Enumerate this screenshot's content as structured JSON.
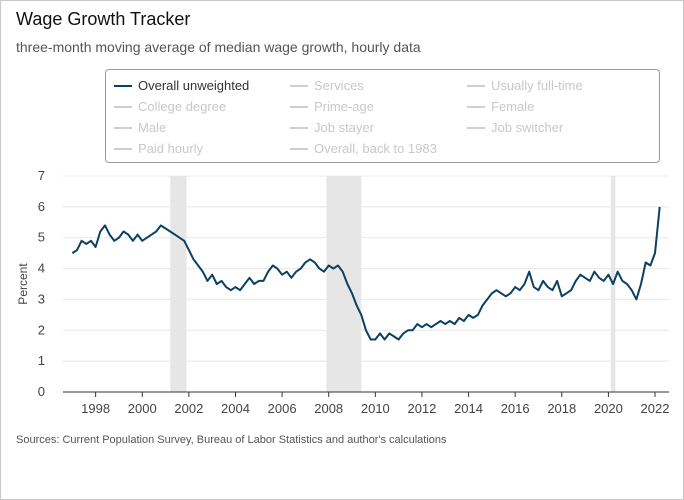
{
  "title": "Wage Growth Tracker",
  "subtitle": "three-month moving average of median wage growth, hourly data",
  "source": "Sources: Current Population Survey, Bureau of Labor Statistics and author's calculations",
  "legend": {
    "items": [
      {
        "label": "Overall unweighted",
        "active": true
      },
      {
        "label": "Services",
        "active": false
      },
      {
        "label": "Usually full-time",
        "active": false
      },
      {
        "label": "College degree",
        "active": false
      },
      {
        "label": "Prime-age",
        "active": false
      },
      {
        "label": "Female",
        "active": false
      },
      {
        "label": "Male",
        "active": false
      },
      {
        "label": "Job stayer",
        "active": false
      },
      {
        "label": "Job switcher",
        "active": false
      },
      {
        "label": "Paid hourly",
        "active": false
      },
      {
        "label": "Overall, back to 1983",
        "active": false
      }
    ]
  },
  "colors": {
    "series": "#0d3f63",
    "recession": "#e6e6e6",
    "inactive": "#cfcfcf",
    "grid": "#e8e8e8"
  },
  "chart_data": {
    "type": "line",
    "title": "Wage Growth Tracker",
    "subtitle": "three-month moving average of median wage growth, hourly data",
    "xlabel": "",
    "ylabel": "Percent",
    "xlim": [
      1996.6,
      2022.6
    ],
    "ylim": [
      0,
      7
    ],
    "yticks": [
      0,
      1,
      2,
      3,
      4,
      5,
      6,
      7
    ],
    "xticks": [
      1998,
      2000,
      2002,
      2004,
      2006,
      2008,
      2010,
      2012,
      2014,
      2016,
      2018,
      2020,
      2022
    ],
    "grid": true,
    "legend_position": "top",
    "recessions": [
      [
        2001.2,
        2001.9
      ],
      [
        2007.9,
        2009.4
      ],
      [
        2020.1,
        2020.3
      ]
    ],
    "series": [
      {
        "name": "Overall unweighted",
        "x": [
          1997.0,
          1997.2,
          1997.4,
          1997.6,
          1997.8,
          1998.0,
          1998.2,
          1998.4,
          1998.6,
          1998.8,
          1999.0,
          1999.2,
          1999.4,
          1999.6,
          1999.8,
          2000.0,
          2000.2,
          2000.4,
          2000.6,
          2000.8,
          2001.0,
          2001.2,
          2001.4,
          2001.6,
          2001.8,
          2002.0,
          2002.2,
          2002.4,
          2002.6,
          2002.8,
          2003.0,
          2003.2,
          2003.4,
          2003.6,
          2003.8,
          2004.0,
          2004.2,
          2004.4,
          2004.6,
          2004.8,
          2005.0,
          2005.2,
          2005.4,
          2005.6,
          2005.8,
          2006.0,
          2006.2,
          2006.4,
          2006.6,
          2006.8,
          2007.0,
          2007.2,
          2007.4,
          2007.6,
          2007.8,
          2008.0,
          2008.2,
          2008.4,
          2008.6,
          2008.8,
          2009.0,
          2009.2,
          2009.4,
          2009.6,
          2009.8,
          2010.0,
          2010.2,
          2010.4,
          2010.6,
          2010.8,
          2011.0,
          2011.2,
          2011.4,
          2011.6,
          2011.8,
          2012.0,
          2012.2,
          2012.4,
          2012.6,
          2012.8,
          2013.0,
          2013.2,
          2013.4,
          2013.6,
          2013.8,
          2014.0,
          2014.2,
          2014.4,
          2014.6,
          2014.8,
          2015.0,
          2015.2,
          2015.4,
          2015.6,
          2015.8,
          2016.0,
          2016.2,
          2016.4,
          2016.6,
          2016.8,
          2017.0,
          2017.2,
          2017.4,
          2017.6,
          2017.8,
          2018.0,
          2018.2,
          2018.4,
          2018.6,
          2018.8,
          2019.0,
          2019.2,
          2019.4,
          2019.6,
          2019.8,
          2020.0,
          2020.2,
          2020.4,
          2020.6,
          2020.8,
          2021.0,
          2021.2,
          2021.4,
          2021.6,
          2021.8,
          2022.0,
          2022.2
        ],
        "values": [
          4.5,
          4.6,
          4.9,
          4.8,
          4.9,
          4.7,
          5.2,
          5.4,
          5.1,
          4.9,
          5.0,
          5.2,
          5.1,
          4.9,
          5.1,
          4.9,
          5.0,
          5.1,
          5.2,
          5.4,
          5.3,
          5.2,
          5.1,
          5.0,
          4.9,
          4.6,
          4.3,
          4.1,
          3.9,
          3.6,
          3.8,
          3.5,
          3.6,
          3.4,
          3.3,
          3.4,
          3.3,
          3.5,
          3.7,
          3.5,
          3.6,
          3.6,
          3.9,
          4.1,
          4.0,
          3.8,
          3.9,
          3.7,
          3.9,
          4.0,
          4.2,
          4.3,
          4.2,
          4.0,
          3.9,
          4.1,
          4.0,
          4.1,
          3.9,
          3.5,
          3.2,
          2.8,
          2.5,
          2.0,
          1.7,
          1.7,
          1.9,
          1.7,
          1.9,
          1.8,
          1.7,
          1.9,
          2.0,
          2.0,
          2.2,
          2.1,
          2.2,
          2.1,
          2.2,
          2.3,
          2.2,
          2.3,
          2.2,
          2.4,
          2.3,
          2.5,
          2.4,
          2.5,
          2.8,
          3.0,
          3.2,
          3.3,
          3.2,
          3.1,
          3.2,
          3.4,
          3.3,
          3.5,
          3.9,
          3.4,
          3.3,
          3.6,
          3.4,
          3.3,
          3.6,
          3.1,
          3.2,
          3.3,
          3.6,
          3.8,
          3.7,
          3.6,
          3.9,
          3.7,
          3.6,
          3.8,
          3.5,
          3.9,
          3.6,
          3.5,
          3.3,
          3.0,
          3.5,
          4.2,
          4.1,
          4.5,
          6.0
        ]
      }
    ]
  }
}
